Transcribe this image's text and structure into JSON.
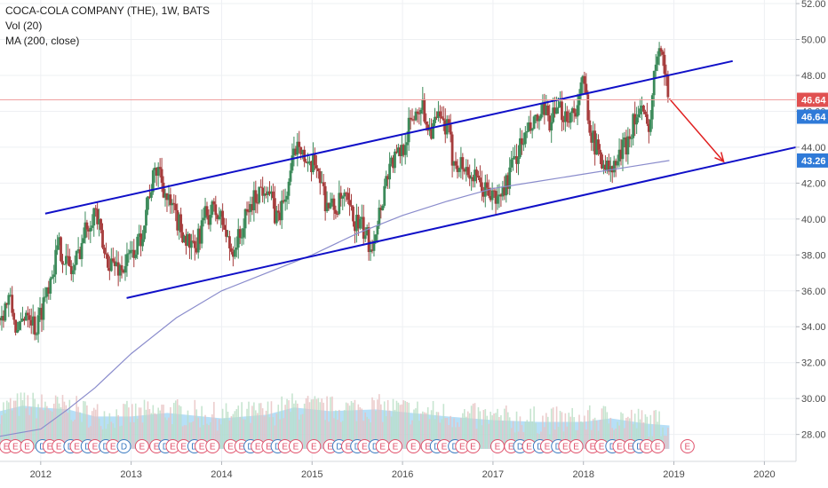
{
  "legend": {
    "symbol": "COCA-COLA COMPANY (THE), 1W, BATS",
    "volume": "Vol (20)",
    "ma": "MA (200, close)"
  },
  "colors": {
    "up": "#3c8a5a",
    "down": "#a63c3c",
    "channel": "#1010c8",
    "ma": "#8a8ccc",
    "volume": "#9fd4f4",
    "arrow": "#e02020",
    "price_badge": "#e05050",
    "ma_badge": "#2f7ad8",
    "price_line": "#f0a0a0",
    "event": "#e0506a",
    "event_blue": "#3a7ac0"
  },
  "chart_data": {
    "type": "candlestick",
    "title": "COCA-COLA COMPANY (THE), 1W, BATS",
    "x_ticks": [
      "2012",
      "2013",
      "2014",
      "2015",
      "2016",
      "2017",
      "2018",
      "2019",
      "2020"
    ],
    "x_range": [
      2011.55,
      2020.35
    ],
    "y_ticks": [
      "28.00",
      "30.00",
      "32.00",
      "34.00",
      "36.00",
      "38.00",
      "40.00",
      "42.00",
      "44.00",
      "46.00",
      "48.00",
      "50.00",
      "52.00"
    ],
    "ylim": [
      26.5,
      52.2
    ],
    "last_price": "46.64",
    "last_price_value": 46.64,
    "ma_last": "43.26",
    "ma_last_value": 43.26,
    "price_path": [
      [
        2011.55,
        34.5
      ],
      [
        2011.65,
        35.6
      ],
      [
        2011.75,
        33.5
      ],
      [
        2011.85,
        35.2
      ],
      [
        2011.95,
        33.8
      ],
      [
        2012.05,
        35.8
      ],
      [
        2012.2,
        38.5
      ],
      [
        2012.35,
        37.0
      ],
      [
        2012.5,
        39.5
      ],
      [
        2012.6,
        40.6
      ],
      [
        2012.7,
        38.0
      ],
      [
        2012.8,
        37.5
      ],
      [
        2012.9,
        37.2
      ],
      [
        2013.0,
        38.0
      ],
      [
        2013.1,
        38.8
      ],
      [
        2013.2,
        41.5
      ],
      [
        2013.3,
        43.0
      ],
      [
        2013.4,
        41.0
      ],
      [
        2013.5,
        40.0
      ],
      [
        2013.6,
        39.0
      ],
      [
        2013.7,
        38.0
      ],
      [
        2013.8,
        40.0
      ],
      [
        2013.9,
        40.5
      ],
      [
        2014.0,
        40.0
      ],
      [
        2014.1,
        38.2
      ],
      [
        2014.2,
        39.0
      ],
      [
        2014.3,
        40.5
      ],
      [
        2014.4,
        41.5
      ],
      [
        2014.5,
        42.0
      ],
      [
        2014.6,
        40.0
      ],
      [
        2014.7,
        41.0
      ],
      [
        2014.8,
        43.5
      ],
      [
        2014.85,
        44.8
      ],
      [
        2014.95,
        42.5
      ],
      [
        2015.05,
        43.2
      ],
      [
        2015.15,
        41.0
      ],
      [
        2015.25,
        40.5
      ],
      [
        2015.35,
        41.2
      ],
      [
        2015.45,
        40.0
      ],
      [
        2015.55,
        39.5
      ],
      [
        2015.65,
        38.5
      ],
      [
        2015.75,
        40.5
      ],
      [
        2015.85,
        43.0
      ],
      [
        2015.95,
        43.5
      ],
      [
        2016.0,
        44.0
      ],
      [
        2016.1,
        45.5
      ],
      [
        2016.2,
        46.5
      ],
      [
        2016.3,
        45.0
      ],
      [
        2016.4,
        45.5
      ],
      [
        2016.5,
        45.0
      ],
      [
        2016.55,
        43.5
      ],
      [
        2016.65,
        43.0
      ],
      [
        2016.75,
        42.5
      ],
      [
        2016.85,
        41.8
      ],
      [
        2016.95,
        41.5
      ],
      [
        2017.05,
        41.0
      ],
      [
        2017.15,
        42.0
      ],
      [
        2017.25,
        43.5
      ],
      [
        2017.35,
        44.5
      ],
      [
        2017.45,
        45.2
      ],
      [
        2017.55,
        45.8
      ],
      [
        2017.65,
        45.5
      ],
      [
        2017.75,
        46.0
      ],
      [
        2017.85,
        45.8
      ],
      [
        2017.95,
        46.5
      ],
      [
        2018.0,
        47.8
      ],
      [
        2018.05,
        46.0
      ],
      [
        2018.12,
        44.0
      ],
      [
        2018.2,
        43.5
      ],
      [
        2018.3,
        42.5
      ],
      [
        2018.4,
        43.5
      ],
      [
        2018.5,
        44.5
      ],
      [
        2018.55,
        45.5
      ],
      [
        2018.65,
        46.0
      ],
      [
        2018.7,
        45.0
      ],
      [
        2018.75,
        46.0
      ],
      [
        2018.8,
        49.0
      ],
      [
        2018.85,
        50.3
      ],
      [
        2018.88,
        49.0
      ],
      [
        2018.92,
        47.3
      ],
      [
        2018.95,
        46.64
      ]
    ],
    "volume_base": 27.2,
    "volume_path": [
      [
        2011.55,
        29.3
      ],
      [
        2011.8,
        29.6
      ],
      [
        2012.0,
        29.5
      ],
      [
        2012.3,
        29.4
      ],
      [
        2012.6,
        29.0
      ],
      [
        2013.0,
        29.0
      ],
      [
        2013.4,
        29.2
      ],
      [
        2014.0,
        28.9
      ],
      [
        2014.5,
        29.1
      ],
      [
        2014.8,
        29.5
      ],
      [
        2015.2,
        29.3
      ],
      [
        2015.7,
        29.4
      ],
      [
        2016.1,
        29.2
      ],
      [
        2016.5,
        29.0
      ],
      [
        2017.0,
        28.8
      ],
      [
        2017.5,
        28.7
      ],
      [
        2018.0,
        28.7
      ],
      [
        2018.3,
        28.9
      ],
      [
        2018.7,
        28.6
      ],
      [
        2018.95,
        28.5
      ]
    ],
    "ma_path": [
      [
        2011.55,
        27.9
      ],
      [
        2012.0,
        28.3
      ],
      [
        2012.3,
        29.4
      ],
      [
        2012.6,
        30.6
      ],
      [
        2013.0,
        32.5
      ],
      [
        2013.5,
        34.5
      ],
      [
        2014.0,
        36.0
      ],
      [
        2014.5,
        37.0
      ],
      [
        2015.0,
        38.0
      ],
      [
        2015.5,
        39.2
      ],
      [
        2016.0,
        40.2
      ],
      [
        2016.5,
        41.0
      ],
      [
        2017.0,
        41.7
      ],
      [
        2017.5,
        42.1
      ],
      [
        2018.0,
        42.5
      ],
      [
        2018.5,
        42.9
      ],
      [
        2018.95,
        43.26
      ]
    ],
    "channel_upper": [
      [
        2012.05,
        40.3
      ],
      [
        2019.65,
        48.8
      ]
    ],
    "channel_lower": [
      [
        2012.95,
        35.6
      ],
      [
        2020.35,
        44.0
      ]
    ],
    "arrow": [
      [
        2018.95,
        46.7
      ],
      [
        2019.55,
        43.2
      ]
    ],
    "event_marks": [
      {
        "x": 2011.62,
        "label": "E"
      },
      {
        "x": 2011.72,
        "label": "E"
      },
      {
        "x": 2011.85,
        "label": "E"
      },
      {
        "x": 2012.02,
        "label": "D"
      },
      {
        "x": 2012.1,
        "label": "E"
      },
      {
        "x": 2012.2,
        "label": "E"
      },
      {
        "x": 2012.33,
        "label": "D"
      },
      {
        "x": 2012.4,
        "label": "E"
      },
      {
        "x": 2012.52,
        "label": "D"
      },
      {
        "x": 2012.6,
        "label": "E"
      },
      {
        "x": 2012.72,
        "label": "D"
      },
      {
        "x": 2012.8,
        "label": "E"
      },
      {
        "x": 2012.92,
        "label": "D"
      },
      {
        "x": 2013.12,
        "label": "E"
      },
      {
        "x": 2013.28,
        "label": "E"
      },
      {
        "x": 2013.38,
        "label": "D"
      },
      {
        "x": 2013.46,
        "label": "E"
      },
      {
        "x": 2013.58,
        "label": "E"
      },
      {
        "x": 2013.7,
        "label": "D"
      },
      {
        "x": 2013.78,
        "label": "E"
      },
      {
        "x": 2013.9,
        "label": "E"
      },
      {
        "x": 2014.1,
        "label": "E"
      },
      {
        "x": 2014.22,
        "label": "E"
      },
      {
        "x": 2014.32,
        "label": "D"
      },
      {
        "x": 2014.4,
        "label": "E"
      },
      {
        "x": 2014.52,
        "label": "E"
      },
      {
        "x": 2014.62,
        "label": "D"
      },
      {
        "x": 2014.7,
        "label": "E"
      },
      {
        "x": 2014.82,
        "label": "E"
      },
      {
        "x": 2015.02,
        "label": "E"
      },
      {
        "x": 2015.2,
        "label": "E"
      },
      {
        "x": 2015.3,
        "label": "D"
      },
      {
        "x": 2015.4,
        "label": "E"
      },
      {
        "x": 2015.5,
        "label": "D"
      },
      {
        "x": 2015.58,
        "label": "E"
      },
      {
        "x": 2015.7,
        "label": "D"
      },
      {
        "x": 2015.78,
        "label": "E"
      },
      {
        "x": 2015.92,
        "label": "E"
      },
      {
        "x": 2016.12,
        "label": "E"
      },
      {
        "x": 2016.28,
        "label": "E"
      },
      {
        "x": 2016.38,
        "label": "D"
      },
      {
        "x": 2016.46,
        "label": "E"
      },
      {
        "x": 2016.58,
        "label": "D"
      },
      {
        "x": 2016.66,
        "label": "E"
      },
      {
        "x": 2016.78,
        "label": "E"
      },
      {
        "x": 2017.05,
        "label": "E"
      },
      {
        "x": 2017.2,
        "label": "E"
      },
      {
        "x": 2017.3,
        "label": "D"
      },
      {
        "x": 2017.4,
        "label": "E"
      },
      {
        "x": 2017.52,
        "label": "D"
      },
      {
        "x": 2017.6,
        "label": "E"
      },
      {
        "x": 2017.72,
        "label": "D"
      },
      {
        "x": 2017.8,
        "label": "E"
      },
      {
        "x": 2017.92,
        "label": "E"
      },
      {
        "x": 2018.1,
        "label": "E"
      },
      {
        "x": 2018.2,
        "label": "E"
      },
      {
        "x": 2018.32,
        "label": "D"
      },
      {
        "x": 2018.4,
        "label": "E"
      },
      {
        "x": 2018.52,
        "label": "E"
      },
      {
        "x": 2018.62,
        "label": "D"
      },
      {
        "x": 2018.7,
        "label": "E"
      },
      {
        "x": 2018.82,
        "label": "E"
      },
      {
        "x": 2019.15,
        "label": "E"
      }
    ]
  }
}
